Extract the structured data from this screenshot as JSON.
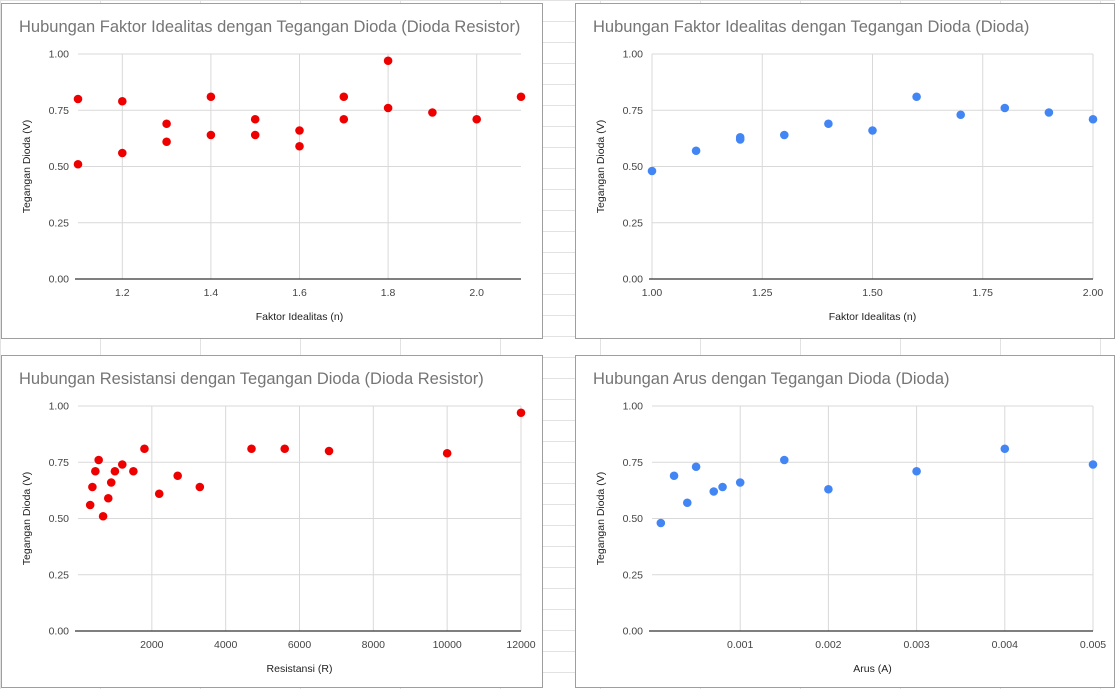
{
  "charts": [
    {
      "title": "Hubungan Faktor Idealitas dengan Tegangan Dioda (Dioda Resistor)",
      "xlabel": "Faktor Idealitas (n)",
      "ylabel": "Tegangan Dioda (V)",
      "color": "#ee0000",
      "xlim": [
        1.1,
        2.1
      ],
      "ylim": [
        0,
        1
      ],
      "xticks": [
        {
          "v": 1.2,
          "label": "1.2"
        },
        {
          "v": 1.4,
          "label": "1.4"
        },
        {
          "v": 1.6,
          "label": "1.6"
        },
        {
          "v": 1.8,
          "label": "1.8"
        },
        {
          "v": 2.0,
          "label": "2.0"
        }
      ],
      "yticks": [
        {
          "v": 0,
          "label": "0.00"
        },
        {
          "v": 0.25,
          "label": "0.25"
        },
        {
          "v": 0.5,
          "label": "0.50"
        },
        {
          "v": 0.75,
          "label": "0.75"
        },
        {
          "v": 1,
          "label": "1.00"
        }
      ]
    },
    {
      "title": "Hubungan Faktor Idealitas dengan Tegangan Dioda (Dioda)",
      "xlabel": "Faktor Idealitas (n)",
      "ylabel": "Tegangan Dioda (V)",
      "color": "#4285f4",
      "xlim": [
        1.0,
        2.0
      ],
      "ylim": [
        0,
        1
      ],
      "xticks": [
        {
          "v": 1.0,
          "label": "1.00"
        },
        {
          "v": 1.25,
          "label": "1.25"
        },
        {
          "v": 1.5,
          "label": "1.50"
        },
        {
          "v": 1.75,
          "label": "1.75"
        },
        {
          "v": 2.0,
          "label": "2.00"
        }
      ],
      "yticks": [
        {
          "v": 0,
          "label": "0.00"
        },
        {
          "v": 0.25,
          "label": "0.25"
        },
        {
          "v": 0.5,
          "label": "0.50"
        },
        {
          "v": 0.75,
          "label": "0.75"
        },
        {
          "v": 1,
          "label": "1.00"
        }
      ]
    },
    {
      "title": "Hubungan Resistansi dengan Tegangan Dioda (Dioda Resistor)",
      "xlabel": "Resistansi (R)",
      "ylabel": "Tegangan Dioda (V)",
      "color": "#ee0000",
      "xlim": [
        0,
        12000
      ],
      "ylim": [
        0,
        1
      ],
      "xticks": [
        {
          "v": 2000,
          "label": "2000"
        },
        {
          "v": 4000,
          "label": "4000"
        },
        {
          "v": 6000,
          "label": "6000"
        },
        {
          "v": 8000,
          "label": "8000"
        },
        {
          "v": 10000,
          "label": "10000"
        },
        {
          "v": 12000,
          "label": "12000"
        }
      ],
      "yticks": [
        {
          "v": 0,
          "label": "0.00"
        },
        {
          "v": 0.25,
          "label": "0.25"
        },
        {
          "v": 0.5,
          "label": "0.50"
        },
        {
          "v": 0.75,
          "label": "0.75"
        },
        {
          "v": 1,
          "label": "1.00"
        }
      ]
    },
    {
      "title": "Hubungan Arus dengan Tegangan Dioda (Dioda)",
      "xlabel": "Arus (A)",
      "ylabel": "Tegangan Dioda (V)",
      "color": "#4285f4",
      "xlim": [
        0,
        0.005
      ],
      "ylim": [
        0,
        1
      ],
      "xticks": [
        {
          "v": 0.001,
          "label": "0.001"
        },
        {
          "v": 0.002,
          "label": "0.002"
        },
        {
          "v": 0.003,
          "label": "0.003"
        },
        {
          "v": 0.004,
          "label": "0.004"
        },
        {
          "v": 0.005,
          "label": "0.005"
        }
      ],
      "yticks": [
        {
          "v": 0,
          "label": "0.00"
        },
        {
          "v": 0.25,
          "label": "0.25"
        },
        {
          "v": 0.5,
          "label": "0.50"
        },
        {
          "v": 0.75,
          "label": "0.75"
        },
        {
          "v": 1,
          "label": "1.00"
        }
      ]
    }
  ],
  "chart_data": [
    {
      "type": "scatter",
      "title": "Hubungan Faktor Idealitas dengan Tegangan Dioda (Dioda Resistor)",
      "xlabel": "Faktor Idealitas (n)",
      "ylabel": "Tegangan Dioda (V)",
      "xlim": [
        1.1,
        2.1
      ],
      "ylim": [
        0,
        1
      ],
      "grid": true,
      "points": [
        {
          "x": 1.1,
          "y": 0.8
        },
        {
          "x": 1.1,
          "y": 0.51
        },
        {
          "x": 1.2,
          "y": 0.79
        },
        {
          "x": 1.2,
          "y": 0.56
        },
        {
          "x": 1.3,
          "y": 0.69
        },
        {
          "x": 1.3,
          "y": 0.61
        },
        {
          "x": 1.4,
          "y": 0.81
        },
        {
          "x": 1.4,
          "y": 0.64
        },
        {
          "x": 1.5,
          "y": 0.71
        },
        {
          "x": 1.5,
          "y": 0.64
        },
        {
          "x": 1.6,
          "y": 0.66
        },
        {
          "x": 1.6,
          "y": 0.59
        },
        {
          "x": 1.7,
          "y": 0.81
        },
        {
          "x": 1.7,
          "y": 0.71
        },
        {
          "x": 1.8,
          "y": 0.97
        },
        {
          "x": 1.8,
          "y": 0.76
        },
        {
          "x": 1.9,
          "y": 0.74
        },
        {
          "x": 2.0,
          "y": 0.71
        },
        {
          "x": 2.1,
          "y": 0.81
        }
      ]
    },
    {
      "type": "scatter",
      "title": "Hubungan Faktor Idealitas dengan Tegangan Dioda (Dioda)",
      "xlabel": "Faktor Idealitas (n)",
      "ylabel": "Tegangan Dioda (V)",
      "xlim": [
        1.0,
        2.0
      ],
      "ylim": [
        0,
        1
      ],
      "grid": true,
      "points": [
        {
          "x": 1.0,
          "y": 0.48
        },
        {
          "x": 1.1,
          "y": 0.57
        },
        {
          "x": 1.2,
          "y": 0.63
        },
        {
          "x": 1.2,
          "y": 0.62
        },
        {
          "x": 1.3,
          "y": 0.64
        },
        {
          "x": 1.4,
          "y": 0.69
        },
        {
          "x": 1.5,
          "y": 0.66
        },
        {
          "x": 1.6,
          "y": 0.81
        },
        {
          "x": 1.7,
          "y": 0.73
        },
        {
          "x": 1.8,
          "y": 0.76
        },
        {
          "x": 1.9,
          "y": 0.74
        },
        {
          "x": 2.0,
          "y": 0.71
        }
      ]
    },
    {
      "type": "scatter",
      "title": "Hubungan Resistansi dengan Tegangan Dioda (Dioda Resistor)",
      "xlabel": "Resistansi (R)",
      "ylabel": "Tegangan Dioda (V)",
      "xlim": [
        0,
        12000
      ],
      "ylim": [
        0,
        1
      ],
      "grid": true,
      "points": [
        {
          "x": 330,
          "y": 0.56
        },
        {
          "x": 390,
          "y": 0.64
        },
        {
          "x": 470,
          "y": 0.71
        },
        {
          "x": 560,
          "y": 0.76
        },
        {
          "x": 680,
          "y": 0.51
        },
        {
          "x": 820,
          "y": 0.59
        },
        {
          "x": 900,
          "y": 0.66
        },
        {
          "x": 1000,
          "y": 0.71
        },
        {
          "x": 1200,
          "y": 0.74
        },
        {
          "x": 1500,
          "y": 0.71
        },
        {
          "x": 1800,
          "y": 0.81
        },
        {
          "x": 2200,
          "y": 0.61
        },
        {
          "x": 2700,
          "y": 0.69
        },
        {
          "x": 3300,
          "y": 0.64
        },
        {
          "x": 4700,
          "y": 0.81
        },
        {
          "x": 5600,
          "y": 0.81
        },
        {
          "x": 6800,
          "y": 0.8
        },
        {
          "x": 10000,
          "y": 0.79
        },
        {
          "x": 12000,
          "y": 0.97
        }
      ]
    },
    {
      "type": "scatter",
      "title": "Hubungan Arus dengan Tegangan Dioda (Dioda)",
      "xlabel": "Arus (A)",
      "ylabel": "Tegangan Dioda (V)",
      "xlim": [
        0,
        0.005
      ],
      "ylim": [
        0,
        1
      ],
      "grid": true,
      "points": [
        {
          "x": 0.0001,
          "y": 0.48
        },
        {
          "x": 0.00025,
          "y": 0.69
        },
        {
          "x": 0.0004,
          "y": 0.57
        },
        {
          "x": 0.0005,
          "y": 0.73
        },
        {
          "x": 0.0007,
          "y": 0.62
        },
        {
          "x": 0.0008,
          "y": 0.64
        },
        {
          "x": 0.001,
          "y": 0.66
        },
        {
          "x": 0.0015,
          "y": 0.76
        },
        {
          "x": 0.002,
          "y": 0.63
        },
        {
          "x": 0.003,
          "y": 0.71
        },
        {
          "x": 0.004,
          "y": 0.81
        },
        {
          "x": 0.005,
          "y": 0.74
        }
      ]
    }
  ]
}
